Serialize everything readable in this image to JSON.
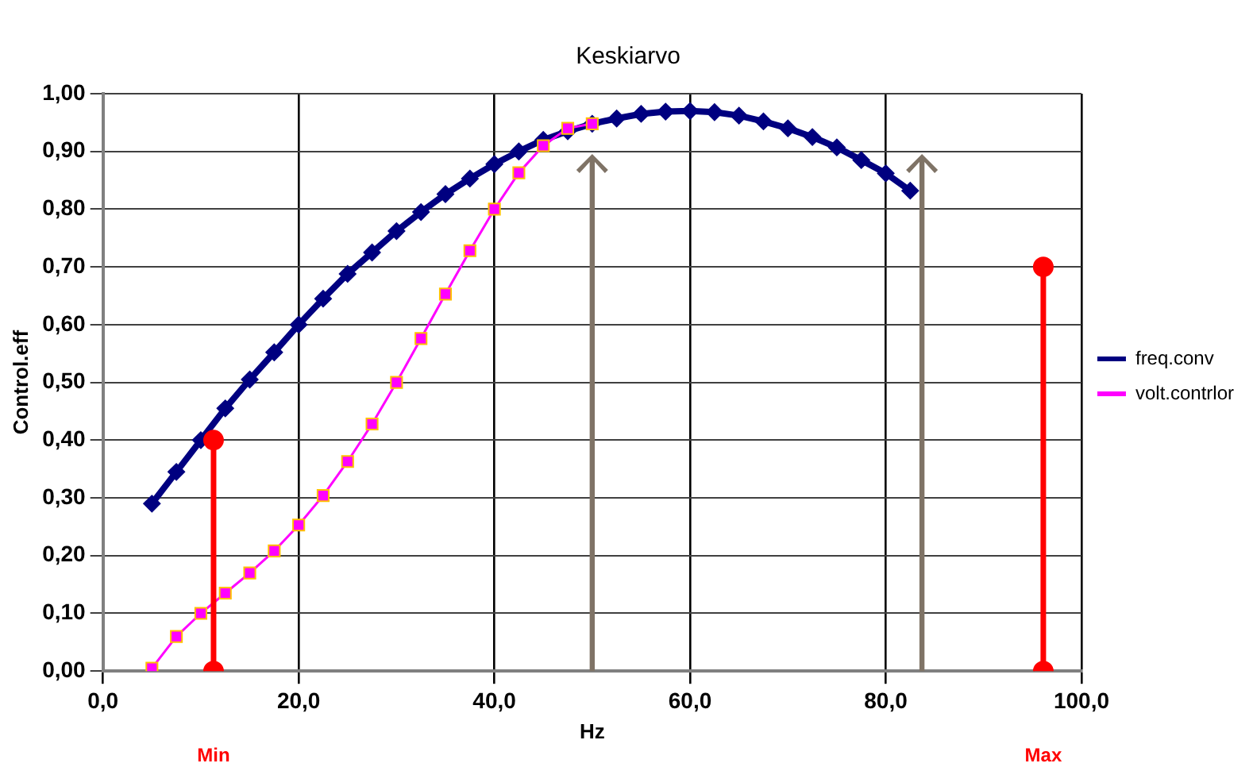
{
  "chart_data": {
    "type": "line",
    "title": "Keskiarvo",
    "xlabel": "Hz",
    "ylabel": "Control.eff",
    "xlim": [
      0,
      100
    ],
    "xticks": [
      {
        "value": 0,
        "label": "0,0"
      },
      {
        "value": 20,
        "label": "20,0"
      },
      {
        "value": 40,
        "label": "40,0"
      },
      {
        "value": 60,
        "label": "60,0"
      },
      {
        "value": 80,
        "label": "80,0"
      },
      {
        "value": 100,
        "label": "100,0"
      }
    ],
    "ylim": [
      0,
      1
    ],
    "yticks": [
      {
        "value": 0,
        "label": "0,00"
      },
      {
        "value": 0.1,
        "label": "0,10"
      },
      {
        "value": 0.2,
        "label": "0,20"
      },
      {
        "value": 0.3,
        "label": "0,30"
      },
      {
        "value": 0.4,
        "label": "0,40"
      },
      {
        "value": 0.5,
        "label": "0,50"
      },
      {
        "value": 0.6,
        "label": "0,60"
      },
      {
        "value": 0.7,
        "label": "0,70"
      },
      {
        "value": 0.8,
        "label": "0,80"
      },
      {
        "value": 0.9,
        "label": "0,90"
      },
      {
        "value": 1,
        "label": "1,00"
      }
    ],
    "grid": true,
    "legend": "right",
    "series": [
      {
        "name": "freq.conv",
        "color": "#000080",
        "marker": "diamond",
        "x": [
          5,
          7.5,
          10,
          12.5,
          15,
          17.5,
          20,
          22.5,
          25,
          27.5,
          30,
          32.5,
          35,
          37.5,
          40,
          42.5,
          45,
          47.5,
          50,
          52.5,
          55,
          57.5,
          60,
          62.5,
          65,
          67.5,
          70,
          72.5,
          75,
          77.5,
          80,
          82.5
        ],
        "values": [
          0.29,
          0.345,
          0.4,
          0.455,
          0.505,
          0.552,
          0.6,
          0.645,
          0.688,
          0.725,
          0.762,
          0.795,
          0.826,
          0.853,
          0.878,
          0.9,
          0.92,
          0.935,
          0.948,
          0.957,
          0.965,
          0.969,
          0.97,
          0.968,
          0.962,
          0.952,
          0.94,
          0.925,
          0.907,
          0.885,
          0.862,
          0.832
        ]
      },
      {
        "name": "volt.contrlor",
        "color": "#ff00ff",
        "marker": "square",
        "x": [
          5,
          7.5,
          10,
          12.5,
          15,
          17.5,
          20,
          22.5,
          25,
          27.5,
          30,
          32.5,
          35,
          37.5,
          40,
          42.5,
          45,
          47.5,
          50
        ],
        "values": [
          0.005,
          0.06,
          0.1,
          0.135,
          0.17,
          0.208,
          0.253,
          0.304,
          0.363,
          0.428,
          0.5,
          0.576,
          0.653,
          0.728,
          0.8,
          0.863,
          0.91,
          0.94,
          0.948
        ]
      },
      {
        "color": "#ff0000",
        "marker": "circle",
        "x": [
          11.3,
          11.3
        ],
        "values": [
          0,
          0.4
        ]
      },
      {
        "color": "#ff0000",
        "marker": "circle",
        "x": [
          96.1,
          96.1
        ],
        "values": [
          0,
          0.7
        ]
      }
    ],
    "annotations": [
      "Min",
      "Max"
    ]
  }
}
